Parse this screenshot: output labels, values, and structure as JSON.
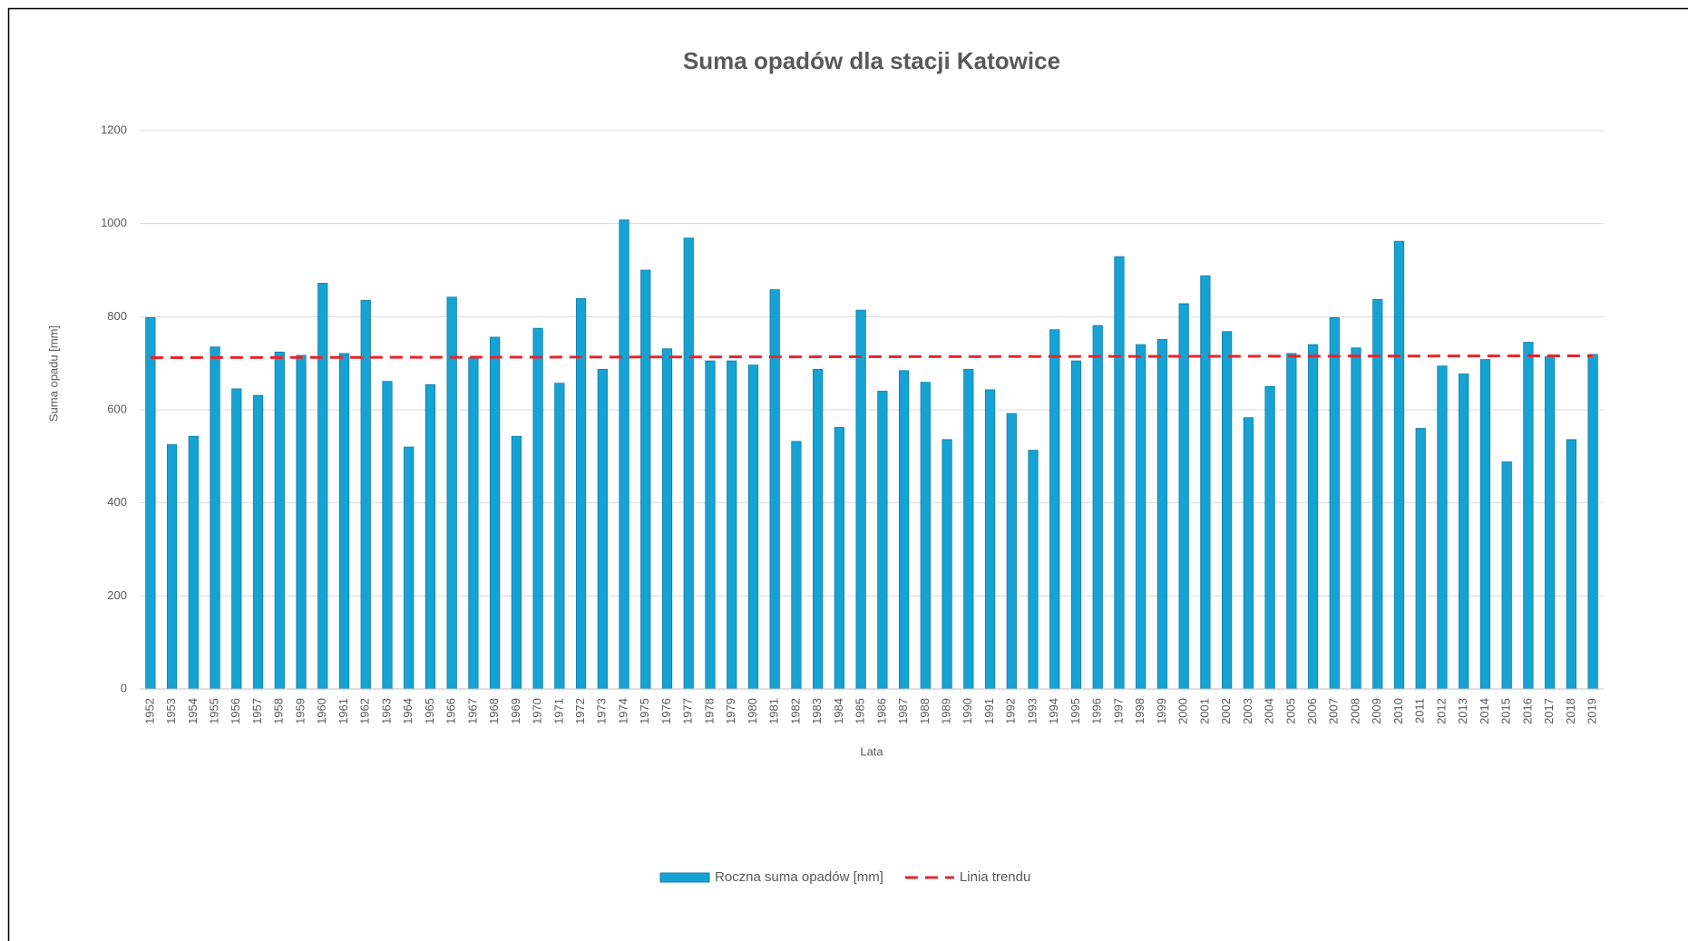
{
  "chart_data": {
    "type": "bar",
    "title": "Suma opadów dla stacji Katowice",
    "x_label": "Lata",
    "y_label": "Suma opadu [mm]",
    "categories": [
      "1952",
      "1953",
      "1954",
      "1955",
      "1956",
      "1957",
      "1958",
      "1959",
      "1960",
      "1961",
      "1962",
      "1963",
      "1964",
      "1965",
      "1966",
      "1967",
      "1968",
      "1969",
      "1970",
      "1971",
      "1972",
      "1973",
      "1974",
      "1975",
      "1976",
      "1977",
      "1978",
      "1979",
      "1980",
      "1981",
      "1982",
      "1983",
      "1984",
      "1985",
      "1986",
      "1987",
      "1988",
      "1989",
      "1990",
      "1991",
      "1992",
      "1993",
      "1994",
      "1995",
      "1996",
      "1997",
      "1998",
      "1999",
      "2000",
      "2001",
      "2002",
      "2003",
      "2004",
      "2005",
      "2006",
      "2007",
      "2008",
      "2009",
      "2010",
      "2011",
      "2012",
      "2013",
      "2014",
      "2015",
      "2016",
      "2017",
      "2018",
      "2019"
    ],
    "series": [
      {
        "name": "Roczna suma opadów [mm]",
        "color": "#17a2d4",
        "values": [
          798,
          525,
          543,
          735,
          645,
          631,
          724,
          717,
          872,
          721,
          835,
          661,
          520,
          654,
          842,
          712,
          756,
          543,
          775,
          657,
          839,
          687,
          1008,
          900,
          731,
          969,
          705,
          705,
          696,
          858,
          532,
          687,
          562,
          814,
          640,
          684,
          659,
          536,
          687,
          643,
          592,
          513,
          772,
          705,
          781,
          929,
          740,
          751,
          828,
          888,
          768,
          583,
          650,
          721,
          740,
          798,
          733,
          837,
          962,
          560,
          694,
          677,
          708,
          488,
          745,
          714,
          536,
          719
        ]
      },
      {
        "name": "Linia trendu",
        "color": "#e8242b",
        "type": "line",
        "dashed": true,
        "x": [
          "1952",
          "2019"
        ],
        "values": [
          712,
          716
        ]
      }
    ],
    "ylim": [
      0,
      1200
    ],
    "yticks": [
      0,
      200,
      400,
      600,
      800,
      1000,
      1200
    ],
    "grid": true,
    "legend": "bottom"
  }
}
